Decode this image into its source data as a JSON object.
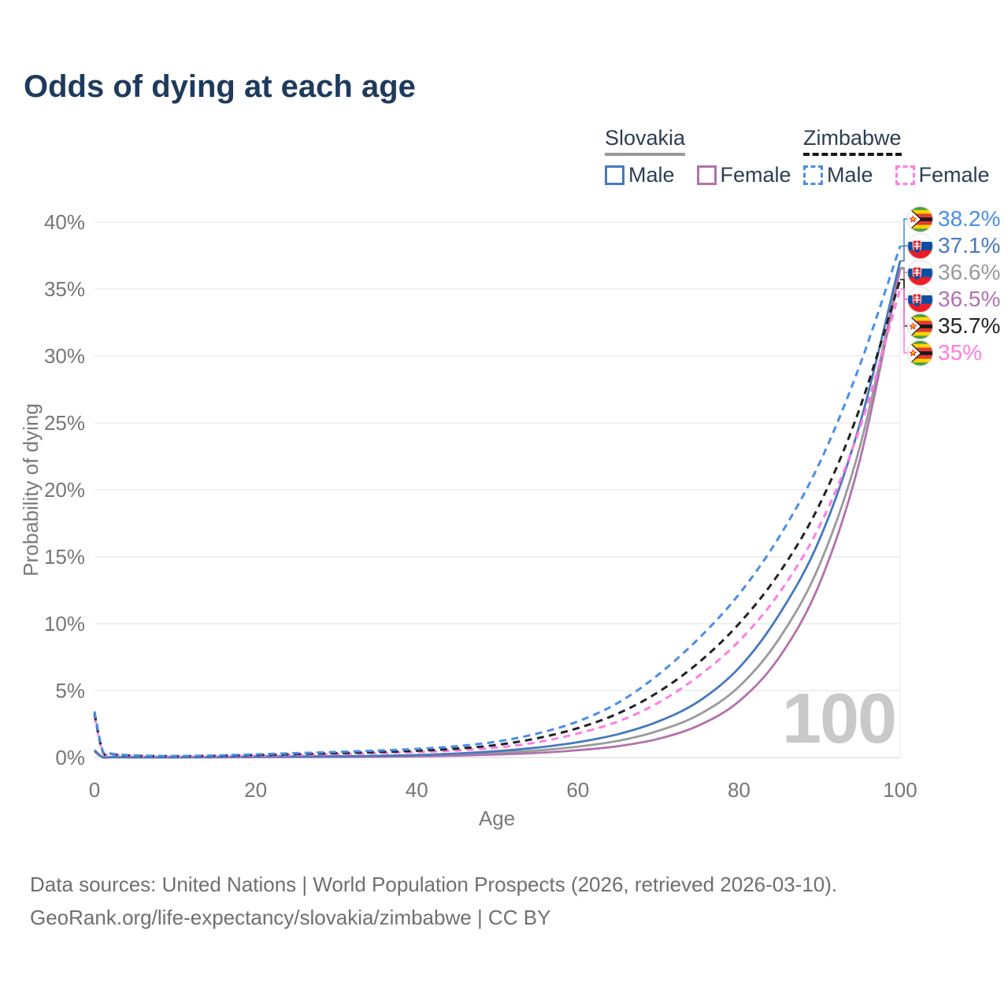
{
  "title": "Odds of dying at each age",
  "watermark": "100",
  "legend": {
    "groups": [
      {
        "country": "Slovakia",
        "line_style": "solid",
        "line_color": "#9a9a9a",
        "items": [
          {
            "label": "Male",
            "color": "#4679bd",
            "dashed": false
          },
          {
            "label": "Female",
            "color": "#b172ae",
            "dashed": false
          }
        ]
      },
      {
        "country": "Zimbabwe",
        "line_style": "dashed",
        "line_color": "#161616",
        "items": [
          {
            "label": "Male",
            "color": "#4a8ee8",
            "dashed": true
          },
          {
            "label": "Female",
            "color": "#ff7de1",
            "dashed": true
          }
        ]
      }
    ]
  },
  "axes": {
    "x": {
      "label": "Age"
    },
    "y": {
      "label": "Probability of dying"
    }
  },
  "footer": {
    "line1": "Data sources: United Nations | World Population Prospects (2026, retrieved 2026-03-10).",
    "line2": "GeoRank.org/life-expectancy/slovakia/zimbabwe | CC BY"
  },
  "chart_data": {
    "type": "line",
    "title": "Odds of dying at each age",
    "xlabel": "Age",
    "ylabel": "Probability of dying",
    "xlim": [
      0,
      100
    ],
    "ylim": [
      0,
      40
    ],
    "grid": "horizontal",
    "legend_position": "top-right",
    "x_ticks": [
      0,
      20,
      40,
      60,
      80,
      100
    ],
    "y_ticks": [
      {
        "value": 0,
        "label": "0%"
      },
      {
        "value": 5,
        "label": "5%"
      },
      {
        "value": 10,
        "label": "10%"
      },
      {
        "value": 15,
        "label": "15%"
      },
      {
        "value": 20,
        "label": "20%"
      },
      {
        "value": 25,
        "label": "25%"
      },
      {
        "value": 30,
        "label": "30%"
      },
      {
        "value": 35,
        "label": "35%"
      },
      {
        "value": 40,
        "label": "40%"
      }
    ],
    "ages": [
      0,
      1,
      2,
      5,
      10,
      15,
      20,
      25,
      30,
      35,
      40,
      45,
      50,
      55,
      60,
      65,
      70,
      75,
      80,
      85,
      90,
      95,
      100
    ],
    "series": [
      {
        "name": "Slovakia Total",
        "country": "Slovakia",
        "sex": "Total",
        "color": "#9a9a9a",
        "dashed": false,
        "flag": "sk",
        "end_label": "36.6%",
        "values": [
          0.5,
          0.035,
          0.025,
          0.017,
          0.017,
          0.03,
          0.055,
          0.06,
          0.07,
          0.09,
          0.13,
          0.21,
          0.34,
          0.53,
          0.82,
          1.25,
          2.0,
          3.2,
          5.3,
          8.9,
          14.4,
          23.2,
          36.6
        ]
      },
      {
        "name": "Slovakia Female",
        "country": "Slovakia",
        "sex": "Female",
        "color": "#b172ae",
        "dashed": false,
        "flag": "sk",
        "end_label": "36.5%",
        "values": [
          0.45,
          0.03,
          0.02,
          0.015,
          0.015,
          0.02,
          0.03,
          0.035,
          0.045,
          0.06,
          0.09,
          0.14,
          0.23,
          0.35,
          0.55,
          0.85,
          1.4,
          2.4,
          4.2,
          7.5,
          13.0,
          22.2,
          36.5
        ]
      },
      {
        "name": "Slovakia Male",
        "country": "Slovakia",
        "sex": "Male",
        "color": "#4679bd",
        "dashed": false,
        "flag": "sk",
        "end_label": "37.1%",
        "values": [
          0.55,
          0.04,
          0.03,
          0.02,
          0.02,
          0.04,
          0.08,
          0.09,
          0.1,
          0.13,
          0.19,
          0.3,
          0.48,
          0.75,
          1.15,
          1.75,
          2.7,
          4.2,
          6.7,
          10.7,
          16.3,
          24.9,
          37.1
        ]
      },
      {
        "name": "Zimbabwe Female",
        "country": "Zimbabwe",
        "sex": "Female",
        "color": "#ff7de1",
        "dashed": true,
        "flag": "zw",
        "end_label": "35%",
        "values": [
          3.1,
          0.45,
          0.24,
          0.13,
          0.09,
          0.11,
          0.15,
          0.2,
          0.26,
          0.33,
          0.41,
          0.53,
          0.75,
          1.15,
          1.8,
          2.7,
          4.1,
          6.1,
          8.7,
          12.3,
          17.3,
          24.6,
          35.0
        ]
      },
      {
        "name": "Zimbabwe Total",
        "country": "Zimbabwe",
        "sex": "Total",
        "color": "#222222",
        "dashed": true,
        "flag": "zw",
        "end_label": "35.7%",
        "values": [
          3.3,
          0.5,
          0.27,
          0.14,
          0.1,
          0.13,
          0.19,
          0.26,
          0.33,
          0.41,
          0.51,
          0.67,
          0.95,
          1.45,
          2.2,
          3.3,
          4.9,
          7.1,
          10.0,
          13.8,
          18.9,
          26.1,
          35.7
        ]
      },
      {
        "name": "Zimbabwe Male",
        "country": "Zimbabwe",
        "sex": "Male",
        "color": "#4a8ee8",
        "dashed": true,
        "flag": "zw",
        "end_label": "38.2%",
        "values": [
          3.45,
          0.55,
          0.3,
          0.16,
          0.12,
          0.16,
          0.24,
          0.33,
          0.42,
          0.52,
          0.65,
          0.85,
          1.2,
          1.8,
          2.7,
          4.1,
          6.2,
          8.9,
          12.2,
          16.5,
          22.0,
          29.3,
          38.2
        ]
      }
    ]
  }
}
